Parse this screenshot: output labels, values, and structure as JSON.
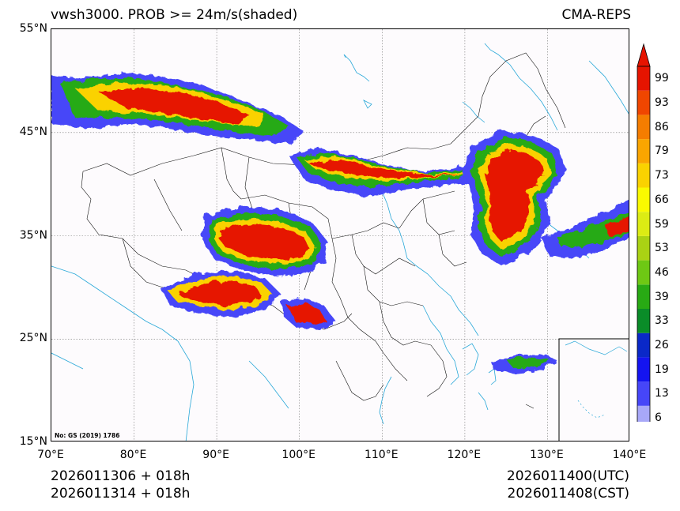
{
  "header": {
    "title_left": "vwsh3000. PROB >= 24m/s(shaded)",
    "title_right": "CMA-REPS"
  },
  "axes": {
    "lat_ticks": [
      "55°N",
      "45°N",
      "35°N",
      "25°N",
      "15°N"
    ],
    "lon_ticks": [
      "70°E",
      "80°E",
      "90°E",
      "100°E",
      "110°E",
      "120°E",
      "130°E",
      "140°E"
    ],
    "lat_values": [
      55,
      45,
      35,
      25,
      15
    ],
    "lon_values": [
      70,
      80,
      90,
      100,
      110,
      120,
      130,
      140
    ],
    "lon_range": [
      70,
      140
    ],
    "lat_range": [
      15,
      55
    ]
  },
  "footer": {
    "init_utc": "2026011306  +  018h",
    "init_cst": "2026011314  +  018h",
    "valid_utc": "2026011400(UTC)",
    "valid_cst": "2026011408(CST)"
  },
  "map_note": "No: GS (2019) 1786",
  "colorbar": {
    "levels": [
      "6",
      "13",
      "19",
      "26",
      "33",
      "39",
      "46",
      "53",
      "59",
      "66",
      "73",
      "79",
      "86",
      "93",
      "99"
    ],
    "colors": [
      "#a8a8f8",
      "#4646f8",
      "#1414f0",
      "#0a28c8",
      "#0a8c28",
      "#28aa14",
      "#6ec814",
      "#aad214",
      "#dcec14",
      "#fafa00",
      "#fad200",
      "#faa500",
      "#f57d00",
      "#f04600",
      "#e61400"
    ],
    "over_color": "#e61400",
    "under_color": "#ffffff"
  }
}
